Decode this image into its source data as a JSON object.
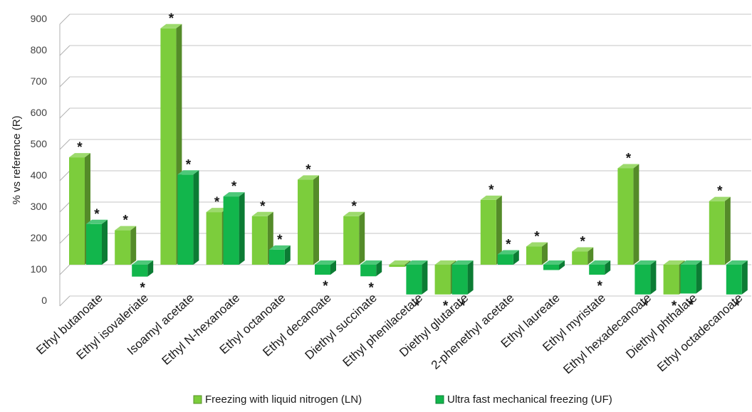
{
  "chart_data": {
    "type": "bar",
    "ylabel": "% vs reference (R)",
    "xlabel": "",
    "ylim": [
      0,
      900
    ],
    "yticks": [
      0,
      100,
      200,
      300,
      400,
      500,
      600,
      700,
      800,
      900
    ],
    "baseline": 100,
    "grid": true,
    "legend_position": "bottom",
    "categories": [
      "Ethyl butanoate",
      "Ethyl isovaleriate",
      "Isoamyl acetate",
      "Ethyl N-hexanoate",
      "Ethyl octanoate",
      "Ethyl decanoate",
      "Diethyl succinate",
      "Ethyl phenilacetate",
      "Diethyl glutarate",
      "2-phenethyl acetate",
      "Ethyl laureate",
      "Ethyl myristate",
      "Ethyl hexadecanoate",
      "Diethyl phthalate",
      "Ethyl octadecanoate"
    ],
    "series": [
      {
        "name": "Freezing with liquid nitrogen  (LN)",
        "color": "#7ccd3c",
        "values": [
          443,
          210,
          855,
          268,
          255,
          372,
          255,
          93,
          5,
          307,
          158,
          142,
          408,
          5,
          303
        ],
        "significant": [
          "*",
          "*",
          "*",
          "*",
          "*",
          "*",
          "*",
          "",
          "*",
          "*",
          "*",
          "*",
          "*",
          "*",
          "*"
        ]
      },
      {
        "name": "Ultra fast mechanical freezing  (UF)",
        "color": "#12b64c",
        "values": [
          230,
          62,
          388,
          318,
          148,
          68,
          63,
          5,
          5,
          133,
          83,
          68,
          5,
          8,
          5
        ],
        "significant": [
          "*",
          "*",
          "*",
          "*",
          "*",
          "*",
          "*",
          "*",
          "*",
          "*",
          "",
          "*",
          "*",
          "*",
          "*"
        ]
      }
    ]
  }
}
